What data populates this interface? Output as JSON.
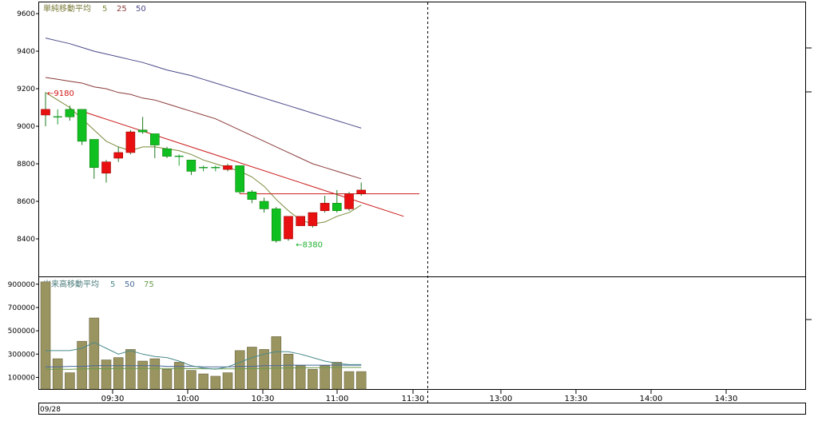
{
  "chart_data": {
    "type": "candlestick",
    "date_label": "09/28",
    "x_axis": {
      "tick_labels": [
        "09:30",
        "10:00",
        "10:30",
        "11:00",
        "11:30",
        "13:00",
        "13:30",
        "14:00",
        "14:30"
      ]
    },
    "price_panel": {
      "ma_title": "単純移動平均",
      "ma_periods": [
        "5",
        "25",
        "50"
      ],
      "ma_colors": [
        "#7a8a3a",
        "#8b3a3a",
        "#4a4a8a"
      ],
      "y_ticks": [
        "9600",
        "9400",
        "9200",
        "9000",
        "8800",
        "8600",
        "8400"
      ],
      "y_tick_values": [
        9600,
        9400,
        9200,
        9000,
        8800,
        8600,
        8400
      ],
      "ylim": [
        8200,
        9660
      ],
      "high_annotation": "←9180",
      "high_value": 9180,
      "low_annotation": "←8380",
      "low_value": 8380,
      "candles": [
        {
          "open": 9060,
          "close": 9090,
          "high": 9180,
          "low": 9000
        },
        {
          "open": 9050,
          "close": 9050,
          "high": 9090,
          "low": 9010
        },
        {
          "open": 9090,
          "close": 9050,
          "high": 9110,
          "low": 9030
        },
        {
          "open": 9090,
          "close": 8920,
          "high": 9090,
          "low": 8900
        },
        {
          "open": 8930,
          "close": 8780,
          "high": 8930,
          "low": 8720
        },
        {
          "open": 8750,
          "close": 8810,
          "high": 8820,
          "low": 8700
        },
        {
          "open": 8830,
          "close": 8860,
          "high": 8890,
          "low": 8810
        },
        {
          "open": 8860,
          "close": 8970,
          "high": 8980,
          "low": 8850
        },
        {
          "open": 8980,
          "close": 8970,
          "high": 9050,
          "low": 8960
        },
        {
          "open": 8960,
          "close": 8900,
          "high": 8960,
          "low": 8830
        },
        {
          "open": 8880,
          "close": 8840,
          "high": 8890,
          "low": 8830
        },
        {
          "open": 8840,
          "close": 8840,
          "high": 8850,
          "low": 8790
        },
        {
          "open": 8820,
          "close": 8760,
          "high": 8820,
          "low": 8740
        },
        {
          "open": 8780,
          "close": 8780,
          "high": 8790,
          "low": 8760
        },
        {
          "open": 8780,
          "close": 8780,
          "high": 8790,
          "low": 8760
        },
        {
          "open": 8770,
          "close": 8790,
          "high": 8800,
          "low": 8760
        },
        {
          "open": 8790,
          "close": 8650,
          "high": 8790,
          "low": 8640
        },
        {
          "open": 8650,
          "close": 8610,
          "high": 8660,
          "low": 8590
        },
        {
          "open": 8600,
          "close": 8560,
          "high": 8620,
          "low": 8540
        },
        {
          "open": 8560,
          "close": 8390,
          "high": 8570,
          "low": 8380
        },
        {
          "open": 8400,
          "close": 8520,
          "high": 8520,
          "low": 8390
        },
        {
          "open": 8470,
          "close": 8520,
          "high": 8520,
          "low": 8470
        },
        {
          "open": 8470,
          "close": 8540,
          "high": 8540,
          "low": 8460
        },
        {
          "open": 8550,
          "close": 8590,
          "high": 8630,
          "low": 8540
        },
        {
          "open": 8590,
          "close": 8550,
          "high": 8660,
          "low": 8540
        },
        {
          "open": 8560,
          "close": 8640,
          "high": 8650,
          "low": 8550
        },
        {
          "open": 8640,
          "close": 8660,
          "high": 8700,
          "low": 8630
        }
      ],
      "ma5": [
        9180,
        9140,
        9100,
        9040,
        8980,
        8920,
        8890,
        8870,
        8890,
        8890,
        8880,
        8870,
        8850,
        8820,
        8800,
        8780,
        8760,
        8730,
        8680,
        8610,
        8550,
        8500,
        8480,
        8490,
        8520,
        8540,
        8580
      ],
      "ma25": [
        9260,
        9250,
        9240,
        9230,
        9210,
        9200,
        9180,
        9170,
        9150,
        9140,
        9120,
        9100,
        9080,
        9060,
        9040,
        9010,
        8980,
        8950,
        8920,
        8890,
        8860,
        8830,
        8800,
        8780,
        8760,
        8740,
        8720
      ],
      "ma50": [
        9470,
        9455,
        9440,
        9420,
        9400,
        9385,
        9370,
        9355,
        9340,
        9320,
        9300,
        9285,
        9270,
        9250,
        9230,
        9210,
        9190,
        9170,
        9150,
        9130,
        9110,
        9090,
        9070,
        9050,
        9030,
        9010,
        8990
      ],
      "trend_line": {
        "start_index": 3,
        "start_price": 9080,
        "end_index": 29.5,
        "end_price": 8520
      },
      "horizontal_line_price": 8640
    },
    "volume_panel": {
      "ma_title": "出来高移動平均",
      "ma_periods": [
        "5",
        "50",
        "75"
      ],
      "ma_colors": [
        "#4a8a8a",
        "#4a6a9a",
        "#6a9a4a"
      ],
      "y_ticks": [
        "900000",
        "700000",
        "500000",
        "300000",
        "100000"
      ],
      "y_tick_values": [
        900000,
        700000,
        500000,
        300000,
        100000
      ],
      "ylim": [
        0,
        960000
      ],
      "volumes": [
        920000,
        260000,
        140000,
        410000,
        610000,
        250000,
        270000,
        340000,
        240000,
        260000,
        170000,
        230000,
        160000,
        130000,
        110000,
        140000,
        330000,
        360000,
        340000,
        450000,
        300000,
        200000,
        170000,
        200000,
        230000,
        150000,
        150000
      ],
      "ma5": [
        330000,
        330000,
        330000,
        350000,
        400000,
        350000,
        300000,
        330000,
        300000,
        280000,
        270000,
        240000,
        200000,
        180000,
        170000,
        190000,
        230000,
        270000,
        300000,
        320000,
        320000,
        300000,
        270000,
        240000,
        220000,
        210000,
        210000
      ],
      "ma50": [
        190000,
        190000,
        195000,
        195000,
        200000,
        200000,
        200000,
        200000,
        200000,
        200000,
        195000,
        195000,
        195000,
        190000,
        190000,
        190000,
        195000,
        195000,
        200000,
        200000,
        205000,
        205000,
        205000,
        205000,
        205000,
        205000,
        205000
      ],
      "ma75": [
        170000,
        170000,
        170000,
        172000,
        175000,
        175000,
        176000,
        176000,
        177000,
        177000,
        177000,
        176000,
        175000,
        174000,
        173000,
        173000,
        174000,
        175000,
        177000,
        179000,
        181000,
        182000,
        183000,
        184000,
        185000,
        186000,
        186000
      ]
    }
  }
}
